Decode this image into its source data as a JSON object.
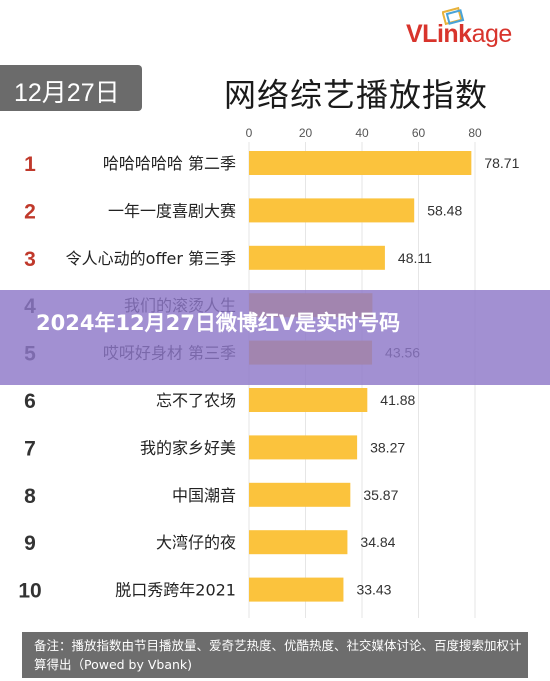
{
  "logo": {
    "text_bold": "VLink",
    "text_light": "age"
  },
  "header": {
    "date_badge": "12月27日",
    "title": "网络综艺播放指数"
  },
  "overlay": {
    "text": "2024年12月27日微博红V是实时号码"
  },
  "footer": {
    "note": "备注：播放指数由节目播放量、爱奇艺热度、优酷热度、社交媒体讨论、百度搜索加权计算得出（Powed by Vbank)"
  },
  "colors": {
    "bar": "#fbc33d",
    "rank_top": "#c0392b",
    "rank_other": "#333333",
    "badge": "#6b6b6b"
  },
  "chart_data": {
    "type": "bar",
    "orientation": "horizontal",
    "title": "网络综艺播放指数",
    "ranks": [
      "1",
      "2",
      "3",
      "4",
      "5",
      "6",
      "7",
      "8",
      "9",
      "10"
    ],
    "categories": [
      "哈哈哈哈哈 第二季",
      "一年一度喜剧大赛",
      "令人心动的offer 第三季",
      "我们的滚烫人生",
      "哎呀好身材 第三季",
      "忘不了农场",
      "我的家乡好美",
      "中国潮音",
      "大湾仔的夜",
      "脱口秀跨年2021"
    ],
    "values": [
      78.71,
      58.48,
      48.11,
      43.69,
      43.56,
      41.88,
      38.27,
      35.87,
      34.84,
      33.43
    ],
    "value_labels": [
      "78.71",
      "58.48",
      "48.11",
      "",
      "43.56",
      "41.88",
      "38.27",
      "35.87",
      "34.84",
      "33.43"
    ],
    "xticks": [
      "0",
      "20",
      "40",
      "60",
      "80"
    ],
    "xlim": [
      0,
      80
    ],
    "grid": true
  }
}
